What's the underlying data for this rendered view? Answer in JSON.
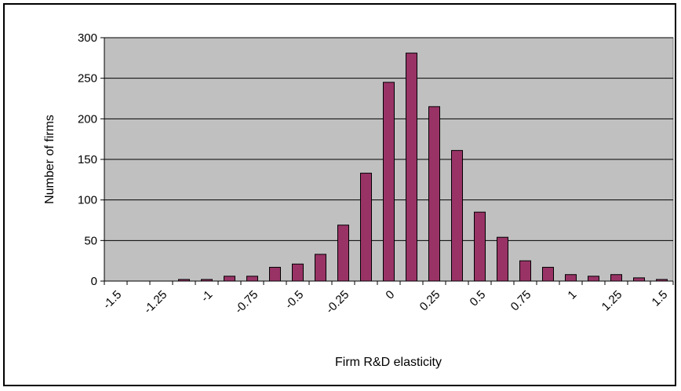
{
  "chart_data": {
    "type": "bar",
    "xlabel": "Firm R&D elasticity",
    "ylabel": "Number of firms",
    "ylim": [
      0,
      300
    ],
    "yticks": [
      "0",
      "50",
      "100",
      "150",
      "200",
      "250",
      "300"
    ],
    "xticks": [
      "-1.5",
      "-1.25",
      "-1",
      "-0.75",
      "-0.5",
      "-0.25",
      "0",
      "0.25",
      "0.5",
      "0.75",
      "1",
      "1.25",
      "1.5"
    ],
    "grid": true,
    "legend": "none",
    "plot_background": "#c0c0c0",
    "bar_color": "#993366",
    "bins": [
      -1.5,
      -1.375,
      -1.25,
      -1.125,
      -1.0,
      -0.875,
      -0.75,
      -0.625,
      -0.5,
      -0.375,
      -0.25,
      -0.125,
      0.0,
      0.125,
      0.25,
      0.375,
      0.5,
      0.625,
      0.75,
      0.875,
      1.0,
      1.125,
      1.25,
      1.375,
      1.5
    ],
    "values": [
      0,
      0,
      0,
      2,
      2,
      6,
      6,
      17,
      21,
      33,
      69,
      133,
      245,
      281,
      215,
      161,
      85,
      54,
      25,
      17,
      8,
      6,
      8,
      4,
      2
    ]
  }
}
